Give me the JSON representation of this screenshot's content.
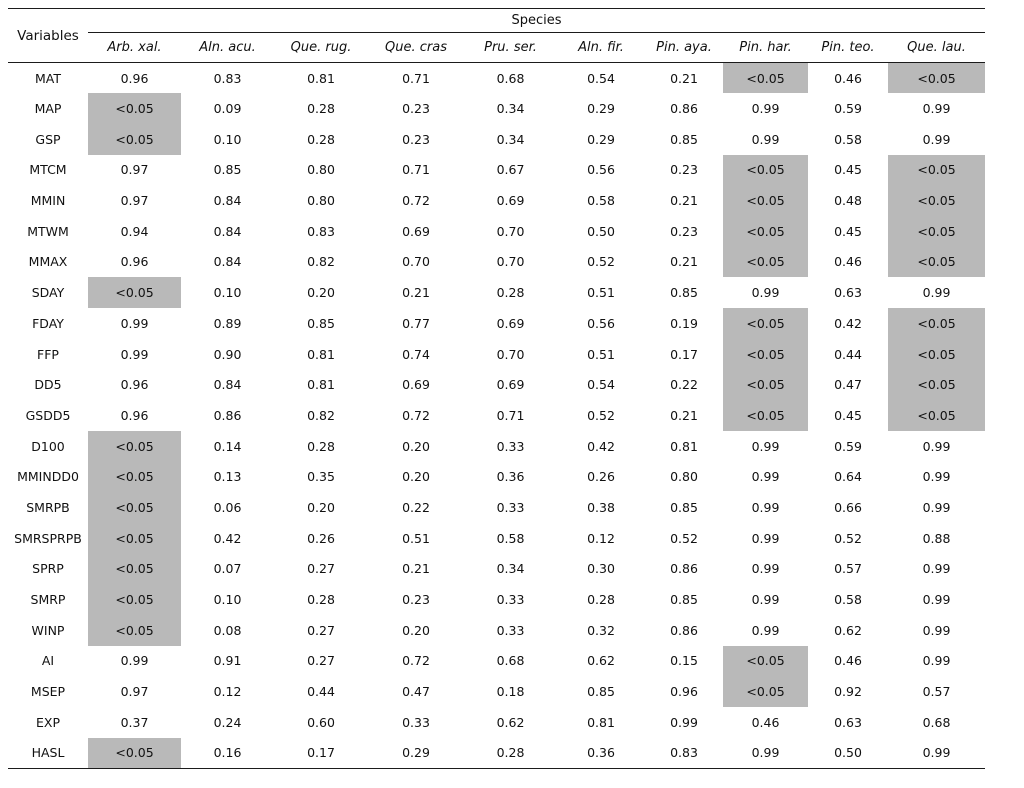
{
  "table": {
    "corner_header": "Variables",
    "group_header": "Species",
    "highlight_color": "#b9b9b9",
    "highlight_value": "<0.05",
    "species_columns": [
      "Arb. xal.",
      "Aln. acu.",
      "Que. rug.",
      "Que. cras",
      "Pru. ser.",
      "Aln. fir.",
      "Pin. aya.",
      "Pin. har.",
      "Pin. teo.",
      "Que. lau."
    ],
    "rows": [
      {
        "variable": "MAT",
        "values": [
          "0.96",
          "0.83",
          "0.81",
          "0.71",
          "0.68",
          "0.54",
          "0.21",
          "<0.05",
          "0.46",
          "<0.05"
        ]
      },
      {
        "variable": "MAP",
        "values": [
          "<0.05",
          "0.09",
          "0.28",
          "0.23",
          "0.34",
          "0.29",
          "0.86",
          "0.99",
          "0.59",
          "0.99"
        ]
      },
      {
        "variable": "GSP",
        "values": [
          "<0.05",
          "0.10",
          "0.28",
          "0.23",
          "0.34",
          "0.29",
          "0.85",
          "0.99",
          "0.58",
          "0.99"
        ]
      },
      {
        "variable": "MTCM",
        "values": [
          "0.97",
          "0.85",
          "0.80",
          "0.71",
          "0.67",
          "0.56",
          "0.23",
          "<0.05",
          "0.45",
          "<0.05"
        ]
      },
      {
        "variable": "MMIN",
        "values": [
          "0.97",
          "0.84",
          "0.80",
          "0.72",
          "0.69",
          "0.58",
          "0.21",
          "<0.05",
          "0.48",
          "<0.05"
        ]
      },
      {
        "variable": "MTWM",
        "values": [
          "0.94",
          "0.84",
          "0.83",
          "0.69",
          "0.70",
          "0.50",
          "0.23",
          "<0.05",
          "0.45",
          "<0.05"
        ]
      },
      {
        "variable": "MMAX",
        "values": [
          "0.96",
          "0.84",
          "0.82",
          "0.70",
          "0.70",
          "0.52",
          "0.21",
          "<0.05",
          "0.46",
          "<0.05"
        ]
      },
      {
        "variable": "SDAY",
        "values": [
          "<0.05",
          "0.10",
          "0.20",
          "0.21",
          "0.28",
          "0.51",
          "0.85",
          "0.99",
          "0.63",
          "0.99"
        ]
      },
      {
        "variable": "FDAY",
        "values": [
          "0.99",
          "0.89",
          "0.85",
          "0.77",
          "0.69",
          "0.56",
          "0.19",
          "<0.05",
          "0.42",
          "<0.05"
        ]
      },
      {
        "variable": "FFP",
        "values": [
          "0.99",
          "0.90",
          "0.81",
          "0.74",
          "0.70",
          "0.51",
          "0.17",
          "<0.05",
          "0.44",
          "<0.05"
        ]
      },
      {
        "variable": "DD5",
        "values": [
          "0.96",
          "0.84",
          "0.81",
          "0.69",
          "0.69",
          "0.54",
          "0.22",
          "<0.05",
          "0.47",
          "<0.05"
        ]
      },
      {
        "variable": "GSDD5",
        "values": [
          "0.96",
          "0.86",
          "0.82",
          "0.72",
          "0.71",
          "0.52",
          "0.21",
          "<0.05",
          "0.45",
          "<0.05"
        ]
      },
      {
        "variable": "D100",
        "values": [
          "<0.05",
          "0.14",
          "0.28",
          "0.20",
          "0.33",
          "0.42",
          "0.81",
          "0.99",
          "0.59",
          "0.99"
        ]
      },
      {
        "variable": "MMINDD0",
        "values": [
          "<0.05",
          "0.13",
          "0.35",
          "0.20",
          "0.36",
          "0.26",
          "0.80",
          "0.99",
          "0.64",
          "0.99"
        ]
      },
      {
        "variable": "SMRPB",
        "values": [
          "<0.05",
          "0.06",
          "0.20",
          "0.22",
          "0.33",
          "0.38",
          "0.85",
          "0.99",
          "0.66",
          "0.99"
        ]
      },
      {
        "variable": "SMRSPRPB",
        "values": [
          "<0.05",
          "0.42",
          "0.26",
          "0.51",
          "0.58",
          "0.12",
          "0.52",
          "0.99",
          "0.52",
          "0.88"
        ]
      },
      {
        "variable": "SPRP",
        "values": [
          "<0.05",
          "0.07",
          "0.27",
          "0.21",
          "0.34",
          "0.30",
          "0.86",
          "0.99",
          "0.57",
          "0.99"
        ]
      },
      {
        "variable": "SMRP",
        "values": [
          "<0.05",
          "0.10",
          "0.28",
          "0.23",
          "0.33",
          "0.28",
          "0.85",
          "0.99",
          "0.58",
          "0.99"
        ]
      },
      {
        "variable": "WINP",
        "values": [
          "<0.05",
          "0.08",
          "0.27",
          "0.20",
          "0.33",
          "0.32",
          "0.86",
          "0.99",
          "0.62",
          "0.99"
        ]
      },
      {
        "variable": "AI",
        "values": [
          "0.99",
          "0.91",
          "0.27",
          "0.72",
          "0.68",
          "0.62",
          "0.15",
          "<0.05",
          "0.46",
          "0.99"
        ]
      },
      {
        "variable": "MSEP",
        "values": [
          "0.97",
          "0.12",
          "0.44",
          "0.47",
          "0.18",
          "0.85",
          "0.96",
          "<0.05",
          "0.92",
          "0.57"
        ]
      },
      {
        "variable": "EXP",
        "values": [
          "0.37",
          "0.24",
          "0.60",
          "0.33",
          "0.62",
          "0.81",
          "0.99",
          "0.46",
          "0.63",
          "0.68"
        ]
      },
      {
        "variable": "HASL",
        "values": [
          "<0.05",
          "0.16",
          "0.17",
          "0.29",
          "0.28",
          "0.36",
          "0.83",
          "0.99",
          "0.50",
          "0.99"
        ]
      }
    ]
  }
}
